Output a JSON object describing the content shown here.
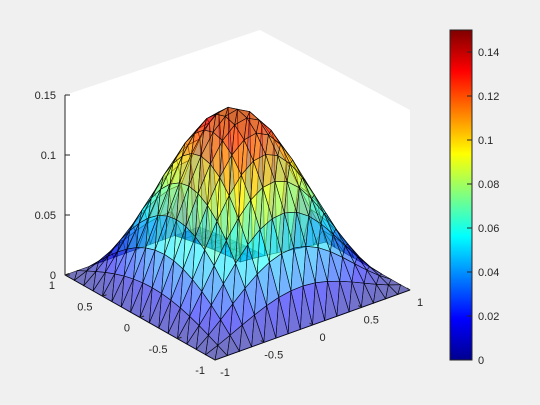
{
  "chart_data": {
    "type": "surface",
    "title": "",
    "xlabel": "",
    "ylabel": "",
    "zlabel": "",
    "xlim": [
      -1,
      1
    ],
    "ylim": [
      -1,
      1
    ],
    "zlim": [
      0,
      0.15
    ],
    "x_ticks": [
      "-1",
      "-0.5",
      "0",
      "0.5",
      "1"
    ],
    "y_ticks": [
      "-1",
      "-0.5",
      "0",
      "0.5",
      "1"
    ],
    "z_ticks": [
      "0",
      "0.05",
      "0.1",
      "0.15"
    ],
    "colormap": "jet",
    "colorbar": {
      "range": [
        0,
        0.15
      ],
      "ticks": [
        "0",
        "0.02",
        "0.04",
        "0.06",
        "0.08",
        "0.1",
        "0.12",
        "0.14"
      ]
    },
    "surface": {
      "function": "peak near (0.15, 0.35), max about 0.15, zero on boundary of square [-1,1]x[-1,1] with a missing inner corner",
      "peak_value": 0.145,
      "mesh": "triangulated, semi-transparent faces with black edges"
    },
    "grid": false,
    "colors": {
      "background": "#f0f0f0",
      "axes_bg": "#ffffff",
      "edge": "#000000"
    }
  }
}
